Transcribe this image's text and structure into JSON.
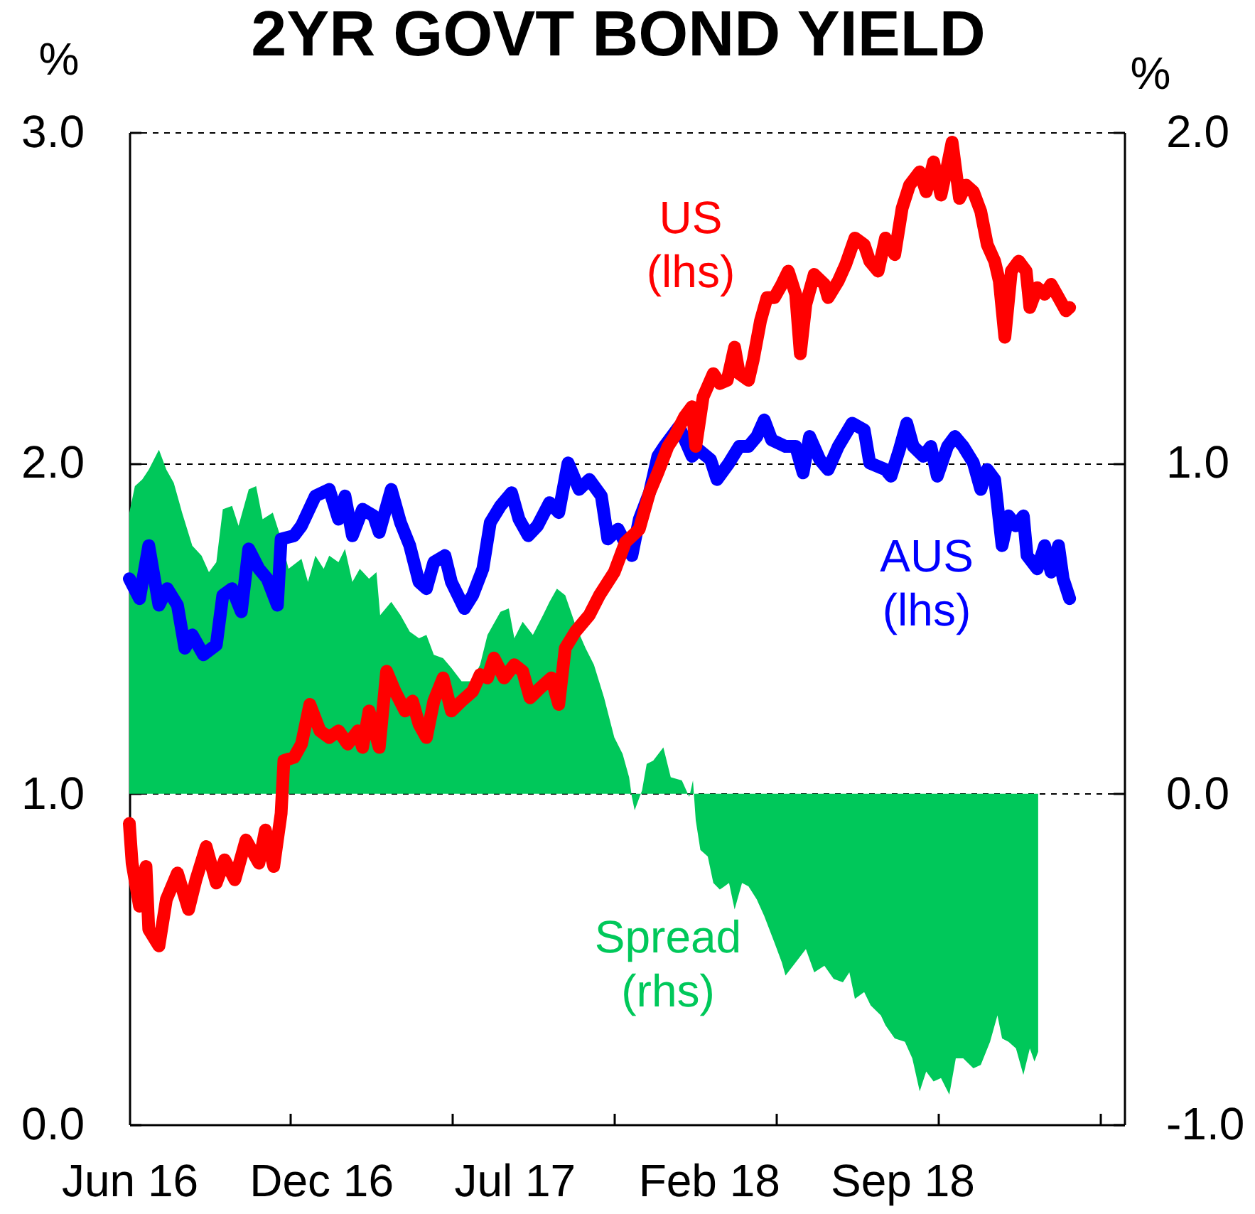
{
  "chart_data": {
    "type": "line",
    "title": "2YR GOVT BOND YIELD",
    "ylabel": "%",
    "y2label": "%",
    "xlim": [
      "2016-06-01",
      "2019-05-12"
    ],
    "xticks": [
      {
        "value": "2016-06-01",
        "label": "Jun 16"
      },
      {
        "value": "2016-11-21",
        "label": null
      },
      {
        "value": "2016-12-25",
        "label": "Dec 16"
      },
      {
        "value": "2017-05-16",
        "label": null
      },
      {
        "value": "2017-07-22",
        "label": "Jul 17"
      },
      {
        "value": "2017-11-07",
        "label": null
      },
      {
        "value": "2018-02-17",
        "label": "Feb 18"
      },
      {
        "value": "2018-05-01",
        "label": null
      },
      {
        "value": "2018-09-14",
        "label": "Sep 18"
      },
      {
        "value": "2018-10-23",
        "label": null
      },
      {
        "value": "2019-04-16",
        "label": null
      }
    ],
    "ylim": [
      0,
      3
    ],
    "yticks": [
      {
        "value": 0,
        "label": "0.0"
      },
      {
        "value": 1,
        "label": "1.0"
      },
      {
        "value": 2,
        "label": "2.0"
      },
      {
        "value": 3,
        "label": "3.0"
      }
    ],
    "y2lim": [
      -1,
      2
    ],
    "y2ticks": [
      {
        "value": -1,
        "label": "-1.0"
      },
      {
        "value": 0,
        "label": "0.0"
      },
      {
        "value": 1,
        "label": "1.0"
      },
      {
        "value": 2,
        "label": "2.0"
      }
    ],
    "grid": "y",
    "series": [
      {
        "name": "AUS (lhs)",
        "color": "#0000ff",
        "x": [
          "2016-06-01",
          "2016-06-12",
          "2016-06-22",
          "2016-07-03",
          "2016-07-12",
          "2016-07-23",
          "2016-07-31",
          "2016-08-08",
          "2016-08-20",
          "2016-09-03",
          "2016-09-10",
          "2016-09-20",
          "2016-09-30",
          "2016-10-08",
          "2016-10-19",
          "2016-10-28",
          "2016-11-08",
          "2016-11-12",
          "2016-11-26",
          "2016-12-04",
          "2016-12-19",
          "2017-01-03",
          "2017-01-13",
          "2017-01-20",
          "2017-01-28",
          "2017-02-08",
          "2017-02-20",
          "2017-02-26",
          "2017-03-11",
          "2017-03-21",
          "2017-03-31",
          "2017-04-10",
          "2017-04-18",
          "2017-04-26",
          "2017-05-08",
          "2017-05-15",
          "2017-05-29",
          "2017-06-07",
          "2017-06-18",
          "2017-06-26",
          "2017-07-07",
          "2017-07-19",
          "2017-07-27",
          "2017-08-06",
          "2017-08-16",
          "2017-08-29",
          "2017-09-08",
          "2017-09-18",
          "2017-09-30",
          "2017-10-11",
          "2017-10-24",
          "2017-10-31",
          "2017-11-11",
          "2017-11-26",
          "2017-12-04",
          "2017-12-15",
          "2017-12-24",
          "2017-12-31",
          "2018-01-16",
          "2018-01-30",
          "2018-02-06",
          "2018-02-19",
          "2018-02-26",
          "2018-03-11",
          "2018-03-22",
          "2018-04-01",
          "2018-04-10",
          "2018-04-18",
          "2018-04-26",
          "2018-05-11",
          "2018-05-22",
          "2018-05-30",
          "2018-06-06",
          "2018-06-17",
          "2018-06-26",
          "2018-07-07",
          "2018-07-22",
          "2018-08-04",
          "2018-08-10",
          "2018-08-27",
          "2018-09-02",
          "2018-09-11",
          "2018-09-19",
          "2018-09-26",
          "2018-10-07",
          "2018-10-15",
          "2018-10-22",
          "2018-11-02",
          "2018-11-10",
          "2018-11-19",
          "2018-11-30",
          "2018-12-08",
          "2018-12-15",
          "2018-12-23",
          "2018-12-31",
          "2019-01-07",
          "2019-01-15",
          "2019-01-23",
          "2019-01-27",
          "2019-02-07",
          "2019-02-15",
          "2019-02-22",
          "2019-03-02",
          "2019-03-07",
          "2019-03-14"
        ],
        "values": [
          1.65,
          1.59,
          1.75,
          1.57,
          1.62,
          1.57,
          1.44,
          1.48,
          1.42,
          1.45,
          1.6,
          1.62,
          1.55,
          1.74,
          1.68,
          1.65,
          1.57,
          1.77,
          1.78,
          1.81,
          1.9,
          1.92,
          1.83,
          1.9,
          1.78,
          1.86,
          1.84,
          1.79,
          1.92,
          1.82,
          1.75,
          1.64,
          1.62,
          1.7,
          1.72,
          1.64,
          1.56,
          1.6,
          1.68,
          1.82,
          1.87,
          1.91,
          1.83,
          1.78,
          1.81,
          1.88,
          1.85,
          2.0,
          1.92,
          1.95,
          1.9,
          1.77,
          1.8,
          1.72,
          1.83,
          1.91,
          2.02,
          2.05,
          2.11,
          2.02,
          2.04,
          2.01,
          1.95,
          2.0,
          2.05,
          2.05,
          2.08,
          2.13,
          2.07,
          2.05,
          2.05,
          1.97,
          2.08,
          2.01,
          1.98,
          2.05,
          2.12,
          2.1,
          2.0,
          1.98,
          1.96,
          2.04,
          2.12,
          2.05,
          2.02,
          2.05,
          1.96,
          2.05,
          2.08,
          2.05,
          2.0,
          1.92,
          1.98,
          1.95,
          1.75,
          1.84,
          1.81,
          1.84,
          1.72,
          1.68,
          1.75,
          1.67,
          1.75,
          1.65,
          1.59
        ]
      },
      {
        "name": "US (lhs)",
        "color": "#ff0000",
        "x": [
          "2016-06-01",
          "2016-06-04",
          "2016-06-12",
          "2016-06-19",
          "2016-06-22",
          "2016-07-03",
          "2016-07-11",
          "2016-07-23",
          "2016-08-04",
          "2016-08-12",
          "2016-08-23",
          "2016-09-03",
          "2016-09-12",
          "2016-09-23",
          "2016-10-05",
          "2016-10-19",
          "2016-10-26",
          "2016-11-04",
          "2016-11-12",
          "2016-11-15",
          "2016-11-26",
          "2016-12-04",
          "2016-12-13",
          "2016-12-24",
          "2017-01-03",
          "2017-01-13",
          "2017-01-23",
          "2017-02-03",
          "2017-02-08",
          "2017-02-15",
          "2017-02-26",
          "2017-03-06",
          "2017-03-15",
          "2017-03-26",
          "2017-04-03",
          "2017-04-10",
          "2017-04-18",
          "2017-04-26",
          "2017-05-06",
          "2017-05-15",
          "2017-05-26",
          "2017-06-07",
          "2017-06-15",
          "2017-06-23",
          "2017-06-30",
          "2017-07-11",
          "2017-07-22",
          "2017-07-31",
          "2017-08-08",
          "2017-08-19",
          "2017-08-31",
          "2017-09-08",
          "2017-09-15",
          "2017-09-26",
          "2017-10-11",
          "2017-10-22",
          "2017-11-07",
          "2017-11-19",
          "2017-12-04",
          "2017-12-15",
          "2017-12-24",
          "2018-01-04",
          "2018-01-11",
          "2018-01-22",
          "2018-01-30",
          "2018-02-03",
          "2018-02-11",
          "2018-02-22",
          "2018-03-01",
          "2018-03-09",
          "2018-03-17",
          "2018-03-22",
          "2018-04-01",
          "2018-04-06",
          "2018-04-14",
          "2018-04-21",
          "2018-04-29",
          "2018-05-07",
          "2018-05-14",
          "2018-05-22",
          "2018-05-27",
          "2018-06-02",
          "2018-06-11",
          "2018-06-22",
          "2018-06-26",
          "2018-07-07",
          "2018-07-15",
          "2018-07-25",
          "2018-08-04",
          "2018-08-10",
          "2018-08-19",
          "2018-08-27",
          "2018-09-06",
          "2018-09-14",
          "2018-09-22",
          "2018-10-03",
          "2018-10-10",
          "2018-10-18",
          "2018-10-26",
          "2018-11-02",
          "2018-11-07",
          "2018-11-15",
          "2018-11-22",
          "2018-11-30",
          "2018-12-08",
          "2018-12-15",
          "2018-12-23",
          "2018-12-28",
          "2019-01-03",
          "2019-01-10",
          "2019-01-18",
          "2019-01-26",
          "2019-01-30",
          "2019-02-07",
          "2019-02-15",
          "2019-02-22",
          "2019-03-02",
          "2019-03-10",
          "2019-03-14"
        ],
        "values": [
          0.91,
          0.79,
          0.66,
          0.78,
          0.59,
          0.54,
          0.68,
          0.76,
          0.65,
          0.74,
          0.84,
          0.73,
          0.8,
          0.74,
          0.86,
          0.79,
          0.89,
          0.78,
          0.94,
          1.1,
          1.11,
          1.15,
          1.27,
          1.19,
          1.17,
          1.19,
          1.15,
          1.19,
          1.14,
          1.25,
          1.14,
          1.37,
          1.31,
          1.25,
          1.28,
          1.21,
          1.17,
          1.28,
          1.35,
          1.25,
          1.28,
          1.31,
          1.36,
          1.35,
          1.41,
          1.35,
          1.39,
          1.37,
          1.29,
          1.32,
          1.35,
          1.27,
          1.44,
          1.49,
          1.54,
          1.6,
          1.67,
          1.76,
          1.8,
          1.91,
          1.97,
          2.05,
          2.08,
          2.14,
          2.17,
          2.05,
          2.2,
          2.27,
          2.24,
          2.25,
          2.35,
          2.27,
          2.25,
          2.31,
          2.43,
          2.5,
          2.5,
          2.54,
          2.58,
          2.51,
          2.33,
          2.48,
          2.57,
          2.54,
          2.5,
          2.55,
          2.6,
          2.68,
          2.66,
          2.61,
          2.58,
          2.68,
          2.63,
          2.77,
          2.84,
          2.88,
          2.82,
          2.91,
          2.81,
          2.9,
          2.97,
          2.8,
          2.84,
          2.82,
          2.76,
          2.66,
          2.61,
          2.55,
          2.38,
          2.58,
          2.61,
          2.58,
          2.47,
          2.53,
          2.51,
          2.54,
          2.5,
          2.46,
          2.47
        ]
      },
      {
        "name": "Spread (rhs)",
        "type": "area",
        "axis": "y2",
        "color": "#00c85a",
        "x": [
          "2016-06-01",
          "2016-06-07",
          "2016-06-15",
          "2016-06-22",
          "2016-07-03",
          "2016-07-11",
          "2016-07-19",
          "2016-07-28",
          "2016-08-08",
          "2016-08-18",
          "2016-08-26",
          "2016-09-03",
          "2016-09-10",
          "2016-09-20",
          "2016-09-27",
          "2016-10-08",
          "2016-10-16",
          "2016-10-23",
          "2016-11-03",
          "2016-11-11",
          "2016-11-20",
          "2016-12-04",
          "2016-12-11",
          "2016-12-19",
          "2016-12-28",
          "2017-01-03",
          "2017-01-13",
          "2017-01-20",
          "2017-01-28",
          "2017-02-05",
          "2017-02-15",
          "2017-02-23",
          "2017-02-27",
          "2017-03-11",
          "2017-03-21",
          "2017-03-31",
          "2017-04-10",
          "2017-04-18",
          "2017-04-26",
          "2017-05-06",
          "2017-05-15",
          "2017-05-26",
          "2017-06-06",
          "2017-06-15",
          "2017-06-23",
          "2017-07-07",
          "2017-07-16",
          "2017-07-22",
          "2017-07-31",
          "2017-08-11",
          "2017-08-22",
          "2017-08-29",
          "2017-09-06",
          "2017-09-15",
          "2017-09-26",
          "2017-10-07",
          "2017-10-16",
          "2017-10-27",
          "2017-11-07",
          "2017-11-16",
          "2017-11-23",
          "2017-11-26",
          "2017-11-29",
          "2017-12-07",
          "2017-12-12",
          "2017-12-19",
          "2017-12-30",
          "2018-01-07",
          "2018-01-19",
          "2018-01-27",
          "2018-01-31",
          "2018-02-03",
          "2018-02-08",
          "2018-02-16",
          "2018-02-22",
          "2018-03-01",
          "2018-03-11",
          "2018-03-17",
          "2018-03-25",
          "2018-04-01",
          "2018-04-10",
          "2018-04-18",
          "2018-04-29",
          "2018-05-07",
          "2018-05-11",
          "2018-05-22",
          "2018-06-02",
          "2018-06-11",
          "2018-06-22",
          "2018-07-02",
          "2018-07-12",
          "2018-07-19",
          "2018-07-25",
          "2018-08-04",
          "2018-08-11",
          "2018-08-22",
          "2018-08-27",
          "2018-09-06",
          "2018-09-17",
          "2018-09-25",
          "2018-10-03",
          "2018-10-10",
          "2018-10-18",
          "2018-10-26",
          "2018-11-04",
          "2018-11-11",
          "2018-11-19",
          "2018-11-30",
          "2018-12-08",
          "2018-12-18",
          "2018-12-26",
          "2018-12-31",
          "2019-01-07",
          "2019-01-15",
          "2019-01-23",
          "2019-01-30",
          "2019-02-04",
          "2019-02-08"
        ],
        "values": [
          0.85,
          0.93,
          0.95,
          0.98,
          1.04,
          0.98,
          0.94,
          0.85,
          0.75,
          0.72,
          0.67,
          0.7,
          0.86,
          0.87,
          0.81,
          0.92,
          0.93,
          0.83,
          0.85,
          0.78,
          0.68,
          0.71,
          0.64,
          0.72,
          0.68,
          0.72,
          0.7,
          0.74,
          0.64,
          0.68,
          0.65,
          0.67,
          0.54,
          0.58,
          0.54,
          0.49,
          0.47,
          0.48,
          0.42,
          0.41,
          0.38,
          0.34,
          0.34,
          0.39,
          0.48,
          0.55,
          0.56,
          0.47,
          0.52,
          0.48,
          0.54,
          0.58,
          0.62,
          0.6,
          0.51,
          0.44,
          0.39,
          0.29,
          0.17,
          0.12,
          0.05,
          -0.01,
          -0.05,
          0.01,
          0.09,
          0.1,
          0.14,
          0.05,
          0.04,
          -0.01,
          0.04,
          -0.08,
          -0.17,
          -0.19,
          -0.27,
          -0.29,
          -0.27,
          -0.35,
          -0.27,
          -0.28,
          -0.32,
          -0.37,
          -0.45,
          -0.51,
          -0.55,
          -0.51,
          -0.47,
          -0.54,
          -0.52,
          -0.56,
          -0.57,
          -0.54,
          -0.62,
          -0.6,
          -0.64,
          -0.67,
          -0.7,
          -0.74,
          -0.75,
          -0.8,
          -0.9,
          -0.84,
          -0.87,
          -0.86,
          -0.91,
          -0.8,
          -0.8,
          -0.83,
          -0.82,
          -0.75,
          -0.67,
          -0.74,
          -0.75,
          -0.77,
          -0.85,
          -0.77,
          -0.81,
          -0.78
        ]
      }
    ]
  }
}
